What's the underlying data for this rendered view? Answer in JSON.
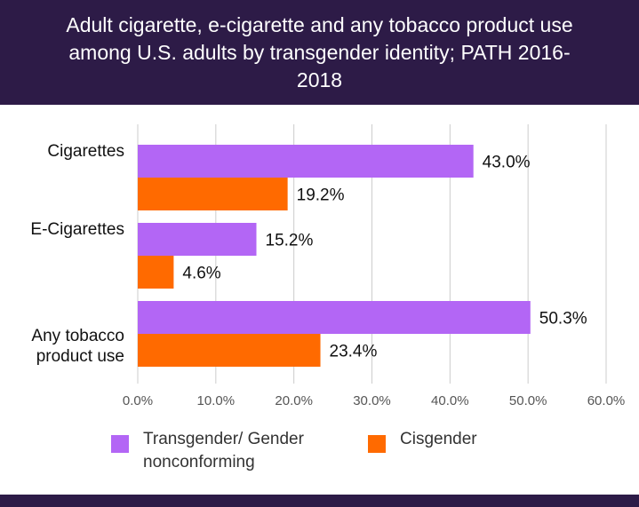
{
  "header": {
    "title": "Adult cigarette, e-cigarette and any tobacco product use among U.S. adults by transgender identity; PATH 2016-2018"
  },
  "colors": {
    "header_bg": "#2d1b47",
    "transgender": "#b366f5",
    "cisgender": "#ff6a00",
    "grid": "#cccccc"
  },
  "chart_data": {
    "type": "bar",
    "orientation": "horizontal",
    "categories": [
      "Cigarettes",
      "E-Cigarettes",
      "Any tobacco product use"
    ],
    "series": [
      {
        "name": "Transgender/ Gender nonconforming",
        "values": [
          43.0,
          15.2,
          50.3
        ],
        "labels": [
          "43.0%",
          "15.2%",
          "50.3%"
        ]
      },
      {
        "name": "Cisgender",
        "values": [
          19.2,
          4.6,
          23.4
        ],
        "labels": [
          "19.2%",
          "4.6%",
          "23.4%"
        ]
      }
    ],
    "xlim": [
      0,
      60
    ],
    "x_ticks": [
      "0.0%",
      "10.0%",
      "20.0%",
      "30.0%",
      "40.0%",
      "50.0%",
      "60.0%"
    ],
    "grid": true,
    "legend_position": "bottom"
  },
  "legend": {
    "items": [
      {
        "label_line1": "Transgender/ Gender",
        "label_line2": "nonconforming"
      },
      {
        "label_line1": "Cisgender",
        "label_line2": ""
      }
    ]
  }
}
